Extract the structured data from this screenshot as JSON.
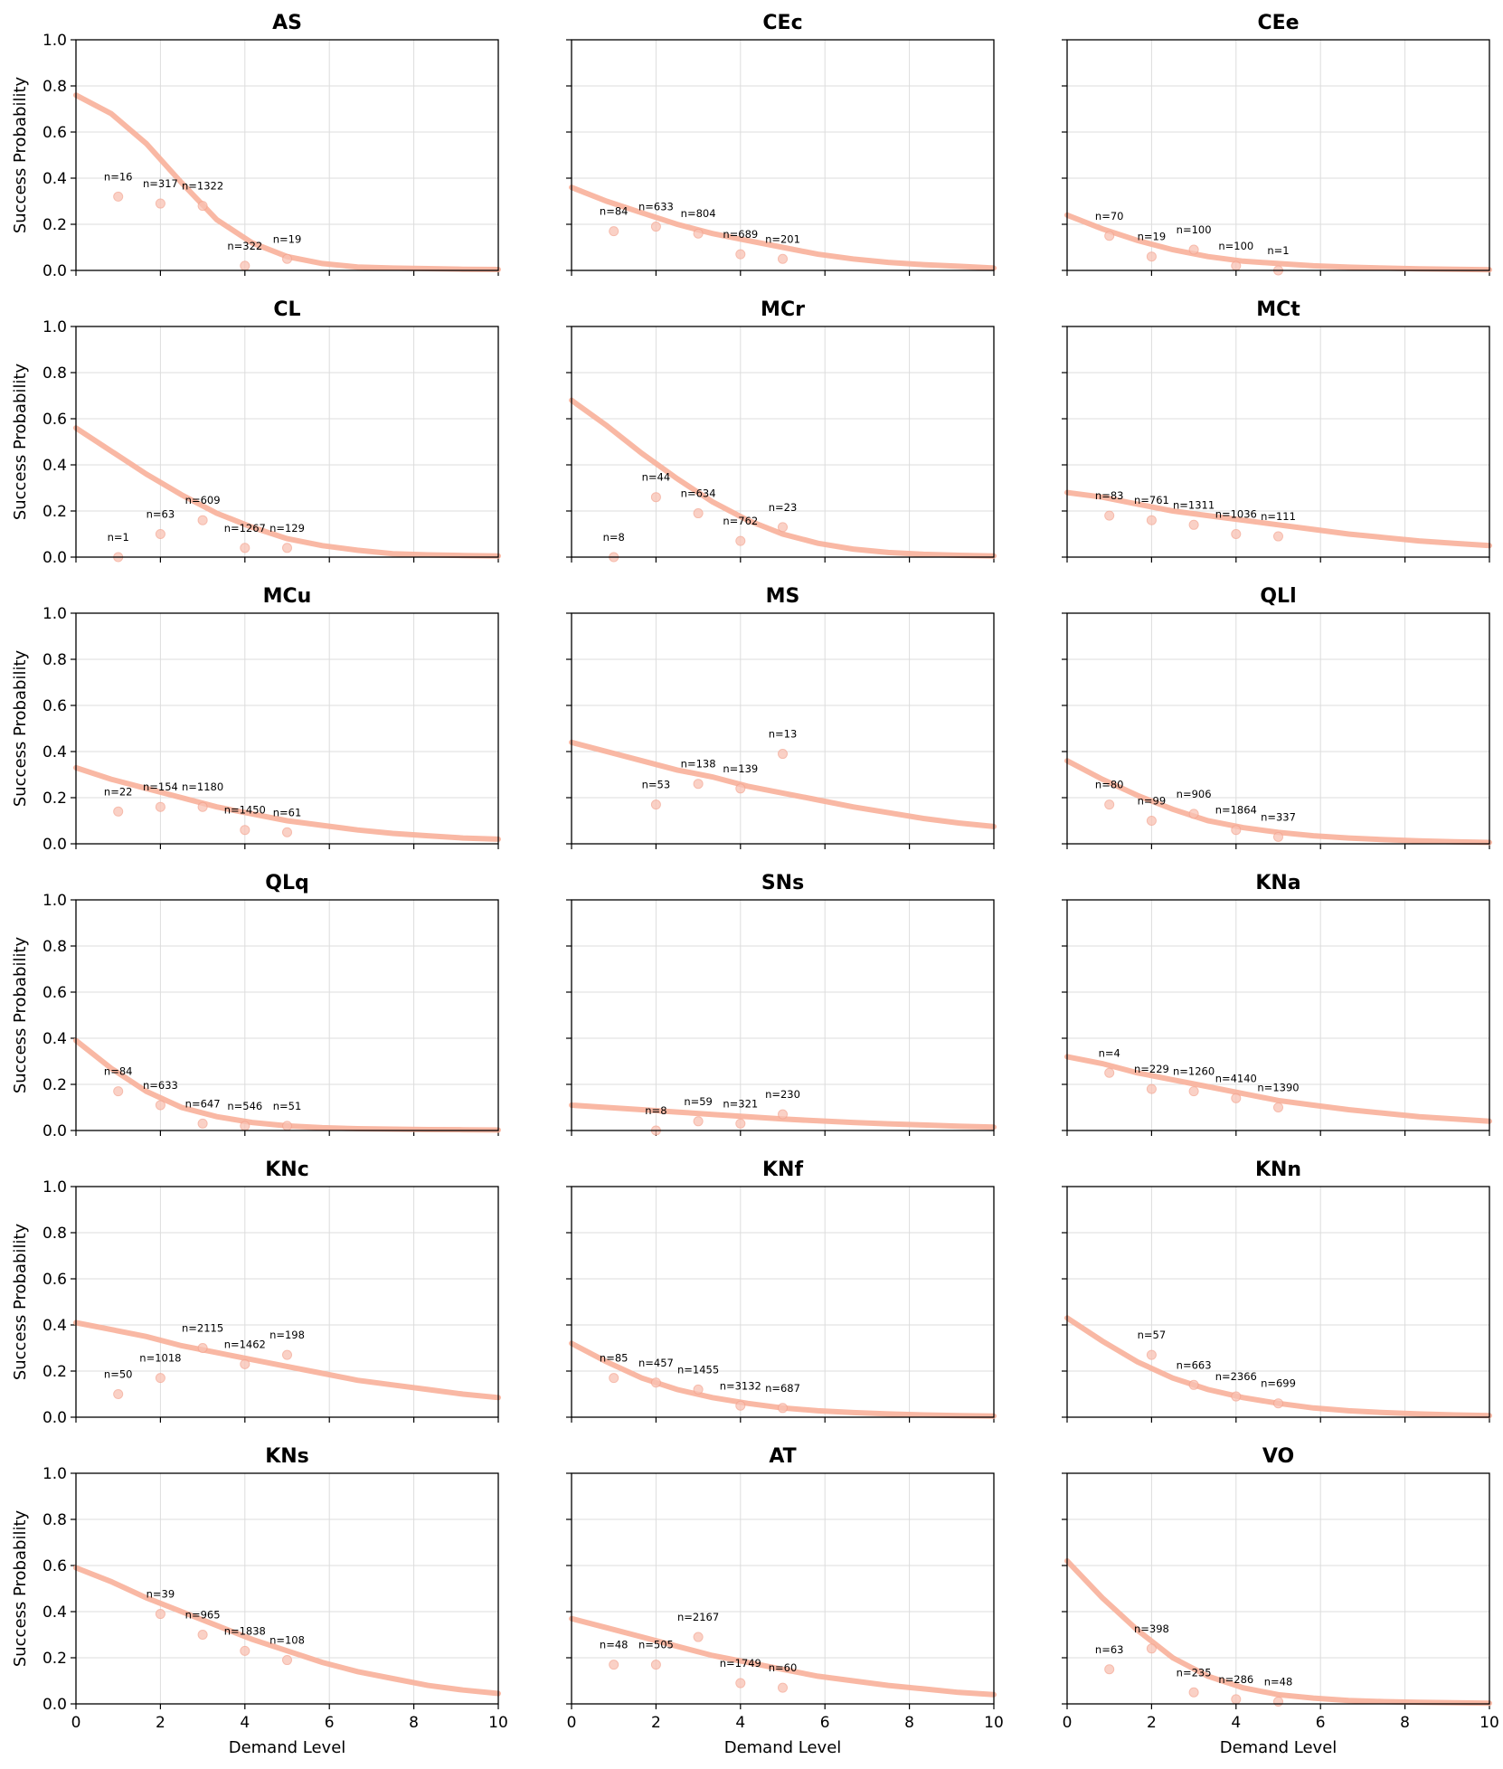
{
  "chart_data": {
    "type": "line",
    "xlabel": "Demand Level",
    "ylabel": "Success Probability",
    "xlim": [
      0,
      10
    ],
    "ylim": [
      0,
      1
    ],
    "xticks": [
      0,
      2,
      4,
      6,
      8,
      10
    ],
    "yticks": [
      0.0,
      0.2,
      0.4,
      0.6,
      0.8,
      1.0
    ],
    "ytick_labels": [
      "0.0",
      "0.2",
      "0.4",
      "0.6",
      "0.8",
      "1.0"
    ],
    "grid": true,
    "colors": {
      "curve": "#f8b09a",
      "point": "#f9c2b3"
    },
    "panels": [
      {
        "title": "AS",
        "curve": [
          0.76,
          0.68,
          0.55,
          0.38,
          0.22,
          0.12,
          0.06,
          0.03,
          0.015,
          0.01,
          0.008,
          0.005,
          0.004
        ],
        "points": [
          {
            "x": 1,
            "y": 0.32,
            "n": "n=16"
          },
          {
            "x": 2,
            "y": 0.29,
            "n": "n=317"
          },
          {
            "x": 3,
            "y": 0.28,
            "n": "n=1322"
          },
          {
            "x": 4,
            "y": 0.02,
            "n": "n=322"
          },
          {
            "x": 5,
            "y": 0.05,
            "n": "n=19"
          }
        ]
      },
      {
        "title": "CEc",
        "curve": [
          0.36,
          0.3,
          0.25,
          0.2,
          0.16,
          0.13,
          0.1,
          0.07,
          0.05,
          0.035,
          0.025,
          0.018,
          0.01
        ],
        "points": [
          {
            "x": 1,
            "y": 0.17,
            "n": "n=84"
          },
          {
            "x": 2,
            "y": 0.19,
            "n": "n=633"
          },
          {
            "x": 3,
            "y": 0.16,
            "n": "n=804"
          },
          {
            "x": 4,
            "y": 0.07,
            "n": "n=689"
          },
          {
            "x": 5,
            "y": 0.05,
            "n": "n=201"
          }
        ]
      },
      {
        "title": "CEe",
        "curve": [
          0.24,
          0.18,
          0.13,
          0.09,
          0.06,
          0.04,
          0.03,
          0.02,
          0.014,
          0.01,
          0.007,
          0.005,
          0.003
        ],
        "points": [
          {
            "x": 1,
            "y": 0.15,
            "n": "n=70"
          },
          {
            "x": 2,
            "y": 0.06,
            "n": "n=19"
          },
          {
            "x": 3,
            "y": 0.09,
            "n": "n=100"
          },
          {
            "x": 4,
            "y": 0.02,
            "n": "n=100"
          },
          {
            "x": 5,
            "y": 0.0,
            "n": "n=1"
          }
        ]
      },
      {
        "title": "CL",
        "curve": [
          0.56,
          0.46,
          0.36,
          0.27,
          0.19,
          0.13,
          0.08,
          0.05,
          0.03,
          0.015,
          0.01,
          0.007,
          0.005
        ],
        "points": [
          {
            "x": 1,
            "y": 0.0,
            "n": "n=1"
          },
          {
            "x": 2,
            "y": 0.1,
            "n": "n=63"
          },
          {
            "x": 3,
            "y": 0.16,
            "n": "n=609"
          },
          {
            "x": 4,
            "y": 0.04,
            "n": "n=1267"
          },
          {
            "x": 5,
            "y": 0.04,
            "n": "n=129"
          }
        ]
      },
      {
        "title": "MCr",
        "curve": [
          0.68,
          0.57,
          0.45,
          0.34,
          0.24,
          0.16,
          0.1,
          0.06,
          0.035,
          0.02,
          0.012,
          0.008,
          0.005
        ],
        "points": [
          {
            "x": 1,
            "y": 0.0,
            "n": "n=8"
          },
          {
            "x": 2,
            "y": 0.26,
            "n": "n=44"
          },
          {
            "x": 3,
            "y": 0.19,
            "n": "n=634"
          },
          {
            "x": 4,
            "y": 0.07,
            "n": "n=762"
          },
          {
            "x": 5,
            "y": 0.13,
            "n": "n=23"
          }
        ]
      },
      {
        "title": "MCt",
        "curve": [
          0.28,
          0.26,
          0.23,
          0.2,
          0.18,
          0.16,
          0.14,
          0.12,
          0.1,
          0.085,
          0.07,
          0.06,
          0.05
        ],
        "points": [
          {
            "x": 1,
            "y": 0.18,
            "n": "n=83"
          },
          {
            "x": 2,
            "y": 0.16,
            "n": "n=761"
          },
          {
            "x": 3,
            "y": 0.14,
            "n": "n=1311"
          },
          {
            "x": 4,
            "y": 0.1,
            "n": "n=1036"
          },
          {
            "x": 5,
            "y": 0.09,
            "n": "n=111"
          }
        ]
      },
      {
        "title": "MCu",
        "curve": [
          0.33,
          0.28,
          0.24,
          0.2,
          0.16,
          0.13,
          0.1,
          0.08,
          0.06,
          0.045,
          0.035,
          0.025,
          0.02
        ],
        "points": [
          {
            "x": 1,
            "y": 0.14,
            "n": "n=22"
          },
          {
            "x": 2,
            "y": 0.16,
            "n": "n=154"
          },
          {
            "x": 3,
            "y": 0.16,
            "n": "n=1180"
          },
          {
            "x": 4,
            "y": 0.06,
            "n": "n=1450"
          },
          {
            "x": 5,
            "y": 0.05,
            "n": "n=61"
          }
        ]
      },
      {
        "title": "MS",
        "curve": [
          0.44,
          0.4,
          0.36,
          0.32,
          0.29,
          0.25,
          0.22,
          0.19,
          0.16,
          0.135,
          0.11,
          0.09,
          0.075
        ],
        "points": [
          {
            "x": 2,
            "y": 0.17,
            "n": "n=53"
          },
          {
            "x": 3,
            "y": 0.26,
            "n": "n=138"
          },
          {
            "x": 4,
            "y": 0.24,
            "n": "n=139"
          },
          {
            "x": 5,
            "y": 0.39,
            "n": "n=13"
          }
        ]
      },
      {
        "title": "QLl",
        "curve": [
          0.36,
          0.28,
          0.21,
          0.15,
          0.1,
          0.07,
          0.05,
          0.035,
          0.025,
          0.018,
          0.013,
          0.009,
          0.006
        ],
        "points": [
          {
            "x": 1,
            "y": 0.17,
            "n": "n=80"
          },
          {
            "x": 2,
            "y": 0.1,
            "n": "n=99"
          },
          {
            "x": 3,
            "y": 0.13,
            "n": "n=906"
          },
          {
            "x": 4,
            "y": 0.06,
            "n": "n=1864"
          },
          {
            "x": 5,
            "y": 0.03,
            "n": "n=337"
          }
        ]
      },
      {
        "title": "QLq",
        "curve": [
          0.39,
          0.27,
          0.17,
          0.1,
          0.06,
          0.035,
          0.02,
          0.012,
          0.008,
          0.006,
          0.004,
          0.003,
          0.002
        ],
        "points": [
          {
            "x": 1,
            "y": 0.17,
            "n": "n=84"
          },
          {
            "x": 2,
            "y": 0.11,
            "n": "n=633"
          },
          {
            "x": 3,
            "y": 0.03,
            "n": "n=647"
          },
          {
            "x": 4,
            "y": 0.02,
            "n": "n=546"
          },
          {
            "x": 5,
            "y": 0.02,
            "n": "n=51"
          }
        ]
      },
      {
        "title": "SNs",
        "curve": [
          0.11,
          0.1,
          0.09,
          0.08,
          0.07,
          0.06,
          0.05,
          0.042,
          0.035,
          0.029,
          0.024,
          0.019,
          0.015
        ],
        "points": [
          {
            "x": 2,
            "y": 0.0,
            "n": "n=8"
          },
          {
            "x": 3,
            "y": 0.04,
            "n": "n=59"
          },
          {
            "x": 4,
            "y": 0.03,
            "n": "n=321"
          },
          {
            "x": 5,
            "y": 0.07,
            "n": "n=230"
          }
        ]
      },
      {
        "title": "KNa",
        "curve": [
          0.32,
          0.29,
          0.25,
          0.22,
          0.19,
          0.16,
          0.13,
          0.11,
          0.09,
          0.075,
          0.06,
          0.05,
          0.04
        ],
        "points": [
          {
            "x": 1,
            "y": 0.25,
            "n": "n=4"
          },
          {
            "x": 2,
            "y": 0.18,
            "n": "n=229"
          },
          {
            "x": 3,
            "y": 0.17,
            "n": "n=1260"
          },
          {
            "x": 4,
            "y": 0.14,
            "n": "n=4140"
          },
          {
            "x": 5,
            "y": 0.1,
            "n": "n=1390"
          }
        ]
      },
      {
        "title": "KNc",
        "curve": [
          0.41,
          0.38,
          0.35,
          0.31,
          0.28,
          0.25,
          0.22,
          0.19,
          0.16,
          0.14,
          0.12,
          0.1,
          0.085
        ],
        "points": [
          {
            "x": 1,
            "y": 0.1,
            "n": "n=50"
          },
          {
            "x": 2,
            "y": 0.17,
            "n": "n=1018"
          },
          {
            "x": 3,
            "y": 0.3,
            "n": "n=2115"
          },
          {
            "x": 4,
            "y": 0.23,
            "n": "n=1462"
          },
          {
            "x": 5,
            "y": 0.27,
            "n": "n=198"
          }
        ]
      },
      {
        "title": "KNf",
        "curve": [
          0.32,
          0.24,
          0.17,
          0.12,
          0.085,
          0.06,
          0.04,
          0.028,
          0.02,
          0.014,
          0.01,
          0.007,
          0.005
        ],
        "points": [
          {
            "x": 1,
            "y": 0.17,
            "n": "n=85"
          },
          {
            "x": 2,
            "y": 0.15,
            "n": "n=457"
          },
          {
            "x": 3,
            "y": 0.12,
            "n": "n=1455"
          },
          {
            "x": 4,
            "y": 0.05,
            "n": "n=3132"
          },
          {
            "x": 5,
            "y": 0.04,
            "n": "n=687"
          }
        ]
      },
      {
        "title": "KNn",
        "curve": [
          0.43,
          0.33,
          0.24,
          0.17,
          0.12,
          0.085,
          0.06,
          0.04,
          0.028,
          0.02,
          0.014,
          0.01,
          0.007
        ],
        "points": [
          {
            "x": 2,
            "y": 0.27,
            "n": "n=57"
          },
          {
            "x": 3,
            "y": 0.14,
            "n": "n=663"
          },
          {
            "x": 4,
            "y": 0.09,
            "n": "n=2366"
          },
          {
            "x": 5,
            "y": 0.06,
            "n": "n=699"
          }
        ]
      },
      {
        "title": "KNs",
        "curve": [
          0.59,
          0.53,
          0.46,
          0.4,
          0.34,
          0.28,
          0.23,
          0.18,
          0.14,
          0.11,
          0.08,
          0.06,
          0.045
        ],
        "points": [
          {
            "x": 2,
            "y": 0.39,
            "n": "n=39"
          },
          {
            "x": 3,
            "y": 0.3,
            "n": "n=965"
          },
          {
            "x": 4,
            "y": 0.23,
            "n": "n=1838"
          },
          {
            "x": 5,
            "y": 0.19,
            "n": "n=108"
          }
        ]
      },
      {
        "title": "AT",
        "curve": [
          0.37,
          0.33,
          0.29,
          0.25,
          0.21,
          0.18,
          0.15,
          0.12,
          0.1,
          0.08,
          0.065,
          0.05,
          0.04
        ],
        "points": [
          {
            "x": 1,
            "y": 0.17,
            "n": "n=48"
          },
          {
            "x": 2,
            "y": 0.17,
            "n": "n=505"
          },
          {
            "x": 3,
            "y": 0.29,
            "n": "n=2167"
          },
          {
            "x": 4,
            "y": 0.09,
            "n": "n=1749"
          },
          {
            "x": 5,
            "y": 0.07,
            "n": "n=60"
          }
        ]
      },
      {
        "title": "VO",
        "curve": [
          0.62,
          0.46,
          0.32,
          0.2,
          0.12,
          0.07,
          0.04,
          0.025,
          0.015,
          0.01,
          0.007,
          0.005,
          0.003
        ],
        "points": [
          {
            "x": 1,
            "y": 0.15,
            "n": "n=63"
          },
          {
            "x": 2,
            "y": 0.24,
            "n": "n=398"
          },
          {
            "x": 3,
            "y": 0.05,
            "n": "n=235"
          },
          {
            "x": 4,
            "y": 0.02,
            "n": "n=286"
          },
          {
            "x": 5,
            "y": 0.01,
            "n": "n=48"
          }
        ]
      }
    ]
  }
}
